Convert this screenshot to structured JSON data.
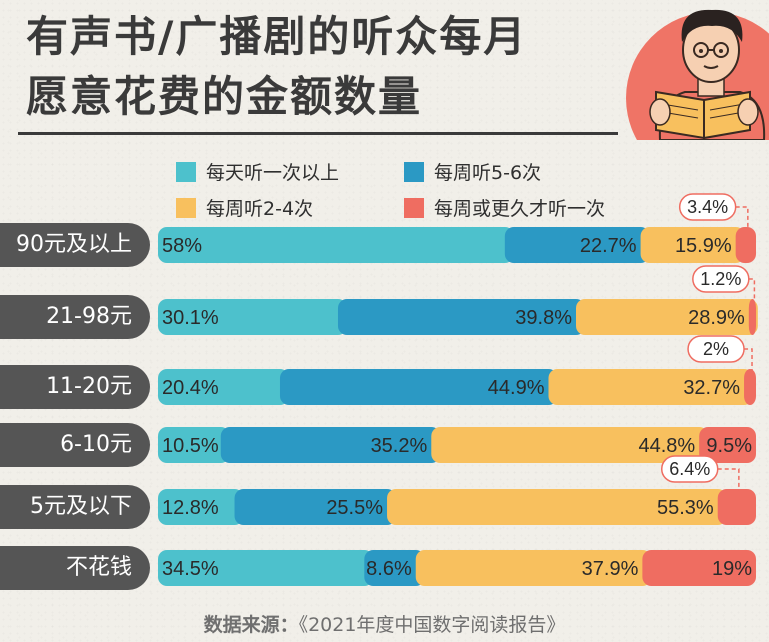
{
  "title_line1": "有声书/广播剧的听众每月",
  "title_line2": "愿意花费的金额数量",
  "source": {
    "prefix": "数据来源：",
    "text": "《2021年度中国数字阅读报告》"
  },
  "colors": {
    "daily": "#4dc1cc",
    "weekly_5_6": "#2b99c4",
    "weekly_2_4": "#f8c05e",
    "weekly_once": "#ef6d61",
    "label_bg": "#555555",
    "illustration_circle": "#ef7466"
  },
  "chart_data": {
    "type": "bar",
    "orientation": "horizontal",
    "stacked": true,
    "title": "有声书/广播剧的听众每月愿意花费的金额数量",
    "categories": [
      "90元及以上",
      "21-98元",
      "11-20元",
      "6-10元",
      "5元及以下",
      "不花钱"
    ],
    "series": [
      {
        "name": "每天听一次以上",
        "values": [
          58,
          30.1,
          20.4,
          10.5,
          12.8,
          34.5
        ],
        "labels": [
          "58%",
          "30.1%",
          "20.4%",
          "10.5%",
          "12.8%",
          "34.5%"
        ]
      },
      {
        "name": "每周听5-6次",
        "values": [
          22.7,
          39.8,
          44.9,
          35.2,
          25.5,
          8.6
        ],
        "labels": [
          "22.7%",
          "39.8%",
          "44.9%",
          "35.2%",
          "25.5%",
          "8.6%"
        ]
      },
      {
        "name": "每周听2-4次",
        "values": [
          15.9,
          28.9,
          32.7,
          44.8,
          55.3,
          37.9
        ],
        "labels": [
          "15.9%",
          "28.9%",
          "32.7%",
          "44.8%",
          "55.3%",
          "37.9%"
        ]
      },
      {
        "name": "每周或更久才听一次",
        "values": [
          3.4,
          1.2,
          2,
          9.5,
          6.4,
          19
        ],
        "labels": [
          "3.4%",
          "1.2%",
          "2%",
          "9.5%",
          "6.4%",
          "19%"
        ]
      }
    ],
    "xlim": [
      0,
      100
    ],
    "legend": "top",
    "grid": false
  }
}
